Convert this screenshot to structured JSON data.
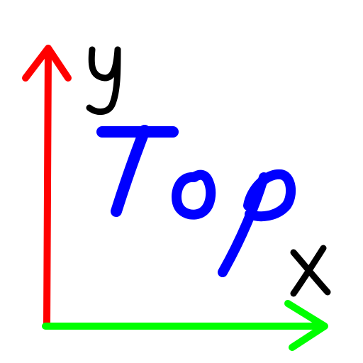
{
  "diagram": {
    "axes": {
      "y": {
        "label": "y",
        "color": "#ff0000"
      },
      "x": {
        "label": "x",
        "color": "#00ff00"
      }
    },
    "center_text": {
      "text": "Top",
      "color": "#0000ff"
    },
    "label_color": "#000000",
    "background": "#ffffff"
  }
}
